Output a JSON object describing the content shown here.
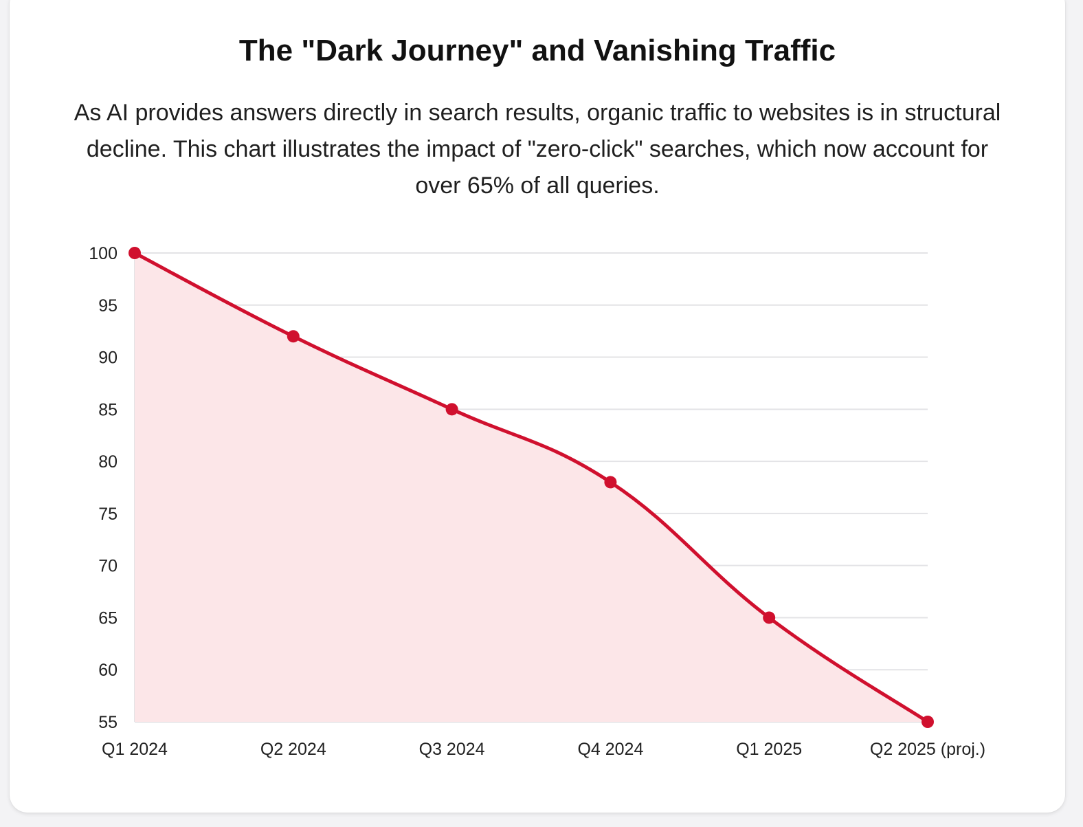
{
  "chart_data": {
    "type": "area",
    "title": "The \"Dark Journey\" and Vanishing Traffic",
    "subtitle": "As AI provides answers directly in search results, organic traffic to websites is in structural decline. This chart illustrates the impact of \"zero-click\" searches, which now account for over 65% of all queries.",
    "categories": [
      "Q1 2024",
      "Q2 2024",
      "Q3 2024",
      "Q4 2024",
      "Q1 2025",
      "Q2 2025 (proj.)"
    ],
    "series": [
      {
        "values": [
          100,
          92,
          85,
          78,
          65,
          55
        ],
        "color": "#d0102e",
        "fill": "#fce6e8"
      }
    ],
    "xlabel": "",
    "ylabel": "",
    "ylim": [
      55,
      100
    ],
    "yticks": [
      100,
      95,
      90,
      85,
      80,
      75,
      70,
      65,
      60,
      55
    ],
    "grid": true,
    "legend": "none"
  }
}
